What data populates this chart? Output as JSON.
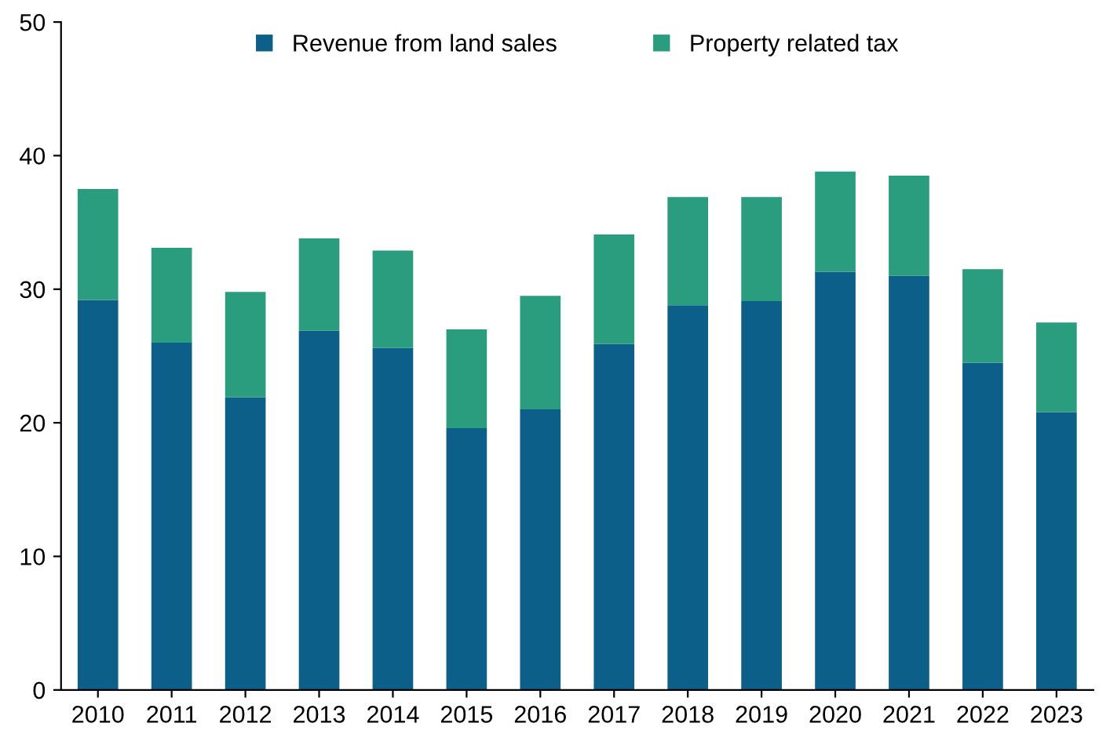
{
  "chart_data": {
    "type": "bar",
    "stacked": true,
    "categories": [
      "2010",
      "2011",
      "2012",
      "2013",
      "2014",
      "2015",
      "2016",
      "2017",
      "2018",
      "2019",
      "2020",
      "2021",
      "2022",
      "2023"
    ],
    "series": [
      {
        "name": "Revenue from land sales",
        "color": "#0b5f88",
        "values": [
          29.2,
          26.0,
          21.9,
          26.9,
          25.6,
          19.6,
          21.0,
          25.9,
          28.8,
          29.1,
          31.3,
          31.0,
          24.5,
          20.8
        ]
      },
      {
        "name": "Property related tax",
        "color": "#2a9d7f",
        "values": [
          8.3,
          7.1,
          7.9,
          6.9,
          7.3,
          7.4,
          8.5,
          8.2,
          8.1,
          7.8,
          7.5,
          7.5,
          7.0,
          6.7
        ]
      }
    ],
    "ylim": [
      0,
      50
    ],
    "yticks": [
      0,
      10,
      20,
      30,
      40,
      50
    ],
    "grid": false,
    "legend": "top"
  }
}
